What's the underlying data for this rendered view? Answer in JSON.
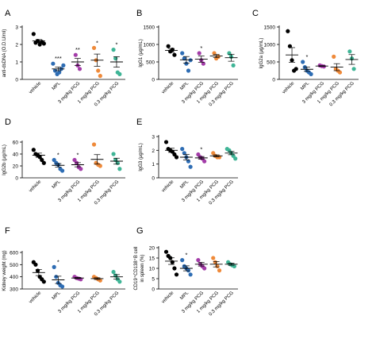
{
  "figure": {
    "groups": [
      "vehicle",
      "MPL",
      "3 mg/kg PCG",
      "1 mg/kg PCG",
      "0.3 mg/kg PCG"
    ],
    "colors": {
      "vehicle": "#000000",
      "MPL": "#2e6db4",
      "3 mg/kg PCG": "#a33ca8",
      "1 mg/kg PCG": "#ef8a3a",
      "0.3 mg/kg PCG": "#3fb596"
    }
  },
  "chart_data": [
    {
      "panel": "A",
      "type": "scatter",
      "ylabel": "anti-dsDNA (O.D.U/ml)",
      "ylim": [
        0,
        3
      ],
      "yticks": [
        "0",
        "1",
        "2",
        "3"
      ],
      "significance": [
        "",
        "***",
        "**",
        "*",
        "*"
      ],
      "series": [
        {
          "name": "vehicle",
          "values": [
            2.6,
            2.1,
            2.2,
            2.0,
            2.15,
            2.05
          ],
          "mean": 2.2,
          "sem": 0.08
        },
        {
          "name": "MPL",
          "values": [
            0.9,
            0.5,
            0.3,
            0.4,
            0.6,
            0.8
          ],
          "mean": 0.6,
          "sem": 0.1
        },
        {
          "name": "3 mg/kg PCG",
          "values": [
            1.4,
            0.8,
            0.6
          ],
          "mean": 1.0,
          "sem": 0.2
        },
        {
          "name": "1 mg/kg PCG",
          "values": [
            1.8,
            1.1,
            0.5,
            0.2
          ],
          "mean": 1.1,
          "sem": 0.35
        },
        {
          "name": "0.3 mg/kg PCG",
          "values": [
            1.7,
            1.2,
            0.4,
            0.3
          ],
          "mean": 1.0,
          "sem": 0.3
        }
      ]
    },
    {
      "panel": "B",
      "type": "scatter",
      "ylabel": "IgG1 (μg/mL)",
      "ylim": [
        0,
        1500
      ],
      "yticks": [
        "0",
        "500",
        "1000",
        "1500"
      ],
      "significance": [
        "",
        "",
        "*",
        "",
        ""
      ],
      "series": [
        {
          "name": "vehicle",
          "values": [
            950,
            800,
            850,
            700
          ],
          "mean": 830,
          "sem": 55
        },
        {
          "name": "MPL",
          "values": [
            750,
            600,
            450,
            250,
            550
          ],
          "mean": 560,
          "sem": 95
        },
        {
          "name": "3 mg/kg PCG",
          "values": [
            750,
            550,
            450
          ],
          "mean": 580,
          "sem": 90
        },
        {
          "name": "1 mg/kg PCG",
          "values": [
            750,
            600,
            650
          ],
          "mean": 670,
          "sem": 45
        },
        {
          "name": "0.3 mg/kg PCG",
          "values": [
            750,
            650,
            400
          ],
          "mean": 620,
          "sem": 100
        }
      ]
    },
    {
      "panel": "C",
      "type": "scatter",
      "ylabel": "IgG2a (μg/mL)",
      "ylim": [
        0,
        1500
      ],
      "yticks": [
        "0",
        "500",
        "1000",
        "1500"
      ],
      "significance": [
        "",
        "*",
        "",
        "",
        ""
      ],
      "series": [
        {
          "name": "vehicle",
          "values": [
            1380,
            950,
            550,
            250,
            300
          ],
          "mean": 700,
          "sem": 210
        },
        {
          "name": "MPL",
          "values": [
            500,
            350,
            250,
            200,
            150
          ],
          "mean": 290,
          "sem": 60
        },
        {
          "name": "3 mg/kg PCG",
          "values": [
            400,
            380,
            370
          ],
          "mean": 383,
          "sem": 10
        },
        {
          "name": "1 mg/kg PCG",
          "values": [
            650,
            300,
            250,
            200
          ],
          "mean": 350,
          "sem": 100
        },
        {
          "name": "0.3 mg/kg PCG",
          "values": [
            800,
            600,
            300
          ],
          "mean": 570,
          "sem": 140
        }
      ]
    },
    {
      "panel": "D",
      "type": "scatter",
      "ylabel": "IgG2b (μg/mL)",
      "ylim": [
        0,
        60
      ],
      "yticks": [
        "0",
        "20",
        "40",
        "60"
      ],
      "significance": [
        "",
        "*",
        "*",
        "",
        ""
      ],
      "series": [
        {
          "name": "vehicle",
          "values": [
            47,
            40,
            38,
            35,
            30,
            25
          ],
          "mean": 38,
          "sem": 3.5
        },
        {
          "name": "MPL",
          "values": [
            30,
            25,
            22,
            15,
            12
          ],
          "mean": 21,
          "sem": 3
        },
        {
          "name": "3 mg/kg PCG",
          "values": [
            30,
            25,
            18,
            15
          ],
          "mean": 22,
          "sem": 3.5
        },
        {
          "name": "1 mg/kg PCG",
          "values": [
            56,
            25,
            22,
            20
          ],
          "mean": 31,
          "sem": 8
        },
        {
          "name": "0.3 mg/kg PCG",
          "values": [
            40,
            30,
            25,
            15
          ],
          "mean": 28,
          "sem": 5
        }
      ]
    },
    {
      "panel": "E",
      "type": "scatter",
      "ylabel": "IgG3 (μg/mL)",
      "ylim": [
        0,
        3
      ],
      "yticks": [
        "0",
        "1",
        "2",
        "3"
      ],
      "significance": [
        "",
        "",
        "*",
        "",
        ""
      ],
      "series": [
        {
          "name": "vehicle",
          "values": [
            2.6,
            2.1,
            2.0,
            1.9,
            1.7,
            1.5
          ],
          "mean": 2.0,
          "sem": 0.15
        },
        {
          "name": "MPL",
          "values": [
            2.1,
            1.8,
            1.5,
            1.2,
            0.8
          ],
          "mean": 1.5,
          "sem": 0.2
        },
        {
          "name": "3 mg/kg PCG",
          "values": [
            1.7,
            1.5,
            1.4,
            1.2
          ],
          "mean": 1.45,
          "sem": 0.1
        },
        {
          "name": "1 mg/kg PCG",
          "values": [
            1.8,
            1.6,
            1.5,
            1.5
          ],
          "mean": 1.6,
          "sem": 0.07
        },
        {
          "name": "0.3 mg/kg PCG",
          "values": [
            2.1,
            2.0,
            1.8,
            1.6,
            1.4
          ],
          "mean": 1.8,
          "sem": 0.12
        }
      ]
    },
    {
      "panel": "F",
      "type": "scatter",
      "ylabel": "Kidney weight (mg)",
      "ylim": [
        300,
        600
      ],
      "yticks": [
        "300",
        "400",
        "500",
        "600"
      ],
      "significance": [
        "",
        "*",
        "",
        "",
        ""
      ],
      "series": [
        {
          "name": "vehicle",
          "values": [
            520,
            500,
            450,
            400,
            380,
            360
          ],
          "mean": 435,
          "sem": 25
        },
        {
          "name": "MPL",
          "values": [
            480,
            400,
            350,
            330,
            320
          ],
          "mean": 375,
          "sem": 30
        },
        {
          "name": "3 mg/kg PCG",
          "values": [
            400,
            390,
            385,
            380
          ],
          "mean": 390,
          "sem": 5
        },
        {
          "name": "1 mg/kg PCG",
          "values": [
            400,
            390,
            380,
            370
          ],
          "mean": 385,
          "sem": 7
        },
        {
          "name": "0.3 mg/kg PCG",
          "values": [
            440,
            410,
            380,
            360
          ],
          "mean": 400,
          "sem": 18
        }
      ]
    },
    {
      "panel": "G",
      "type": "scatter",
      "ylabel": "CD19⁺CD138⁺ B cell in spleen (%)",
      "ylim": [
        0,
        20
      ],
      "yticks": [
        "0",
        "5",
        "10",
        "15",
        "20"
      ],
      "significance": [
        "",
        "*",
        "",
        "",
        ""
      ],
      "series": [
        {
          "name": "vehicle",
          "values": [
            18,
            16,
            15,
            13,
            10,
            7
          ],
          "mean": 13.5,
          "sem": 1.6
        },
        {
          "name": "MPL",
          "values": [
            14,
            11,
            10,
            9,
            7
          ],
          "mean": 10,
          "sem": 1.2
        },
        {
          "name": "3 mg/kg PCG",
          "values": [
            14,
            12,
            11,
            10
          ],
          "mean": 12,
          "sem": 0.9
        },
        {
          "name": "1 mg/kg PCG",
          "values": [
            15,
            13,
            11,
            9
          ],
          "mean": 12,
          "sem": 1.3
        },
        {
          "name": "0.3 mg/kg PCG",
          "values": [
            13,
            12,
            11.5,
            11
          ],
          "mean": 12,
          "sem": 0.5
        }
      ]
    }
  ]
}
